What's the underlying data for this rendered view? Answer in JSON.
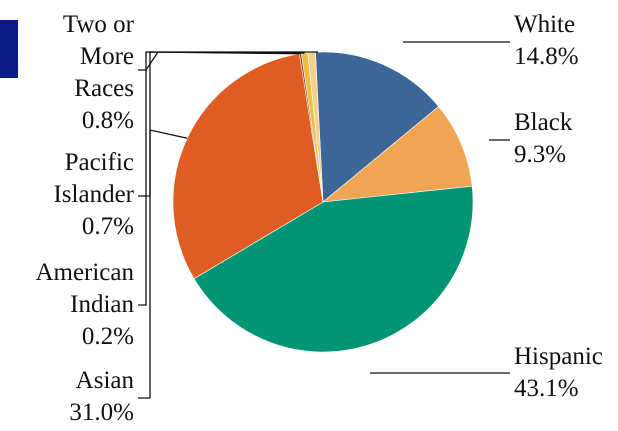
{
  "chart_data": {
    "type": "pie",
    "title": "",
    "start_angle_deg": -2.9,
    "direction": "clockwise",
    "slices": [
      {
        "name": "White",
        "value": 14.8,
        "label": "14.8%",
        "color": "#3b6697"
      },
      {
        "name": "Black",
        "value": 9.3,
        "label": "9.3%",
        "color": "#f0a555"
      },
      {
        "name": "Hispanic",
        "value": 43.1,
        "label": "43.1%",
        "color": "#009574"
      },
      {
        "name": "Asian",
        "value": 31.0,
        "label": "31.0%",
        "color": "#df5d22"
      },
      {
        "name": "American Indian",
        "value": 0.2,
        "label": "0.2%",
        "color": "#8c3b20"
      },
      {
        "name": "Pacific Islander",
        "value": 0.7,
        "label": "0.7%",
        "color": "#e9c040"
      },
      {
        "name": "Two or More Races",
        "value": 0.8,
        "label": "0.8%",
        "color": "#f5d08a"
      }
    ]
  }
}
